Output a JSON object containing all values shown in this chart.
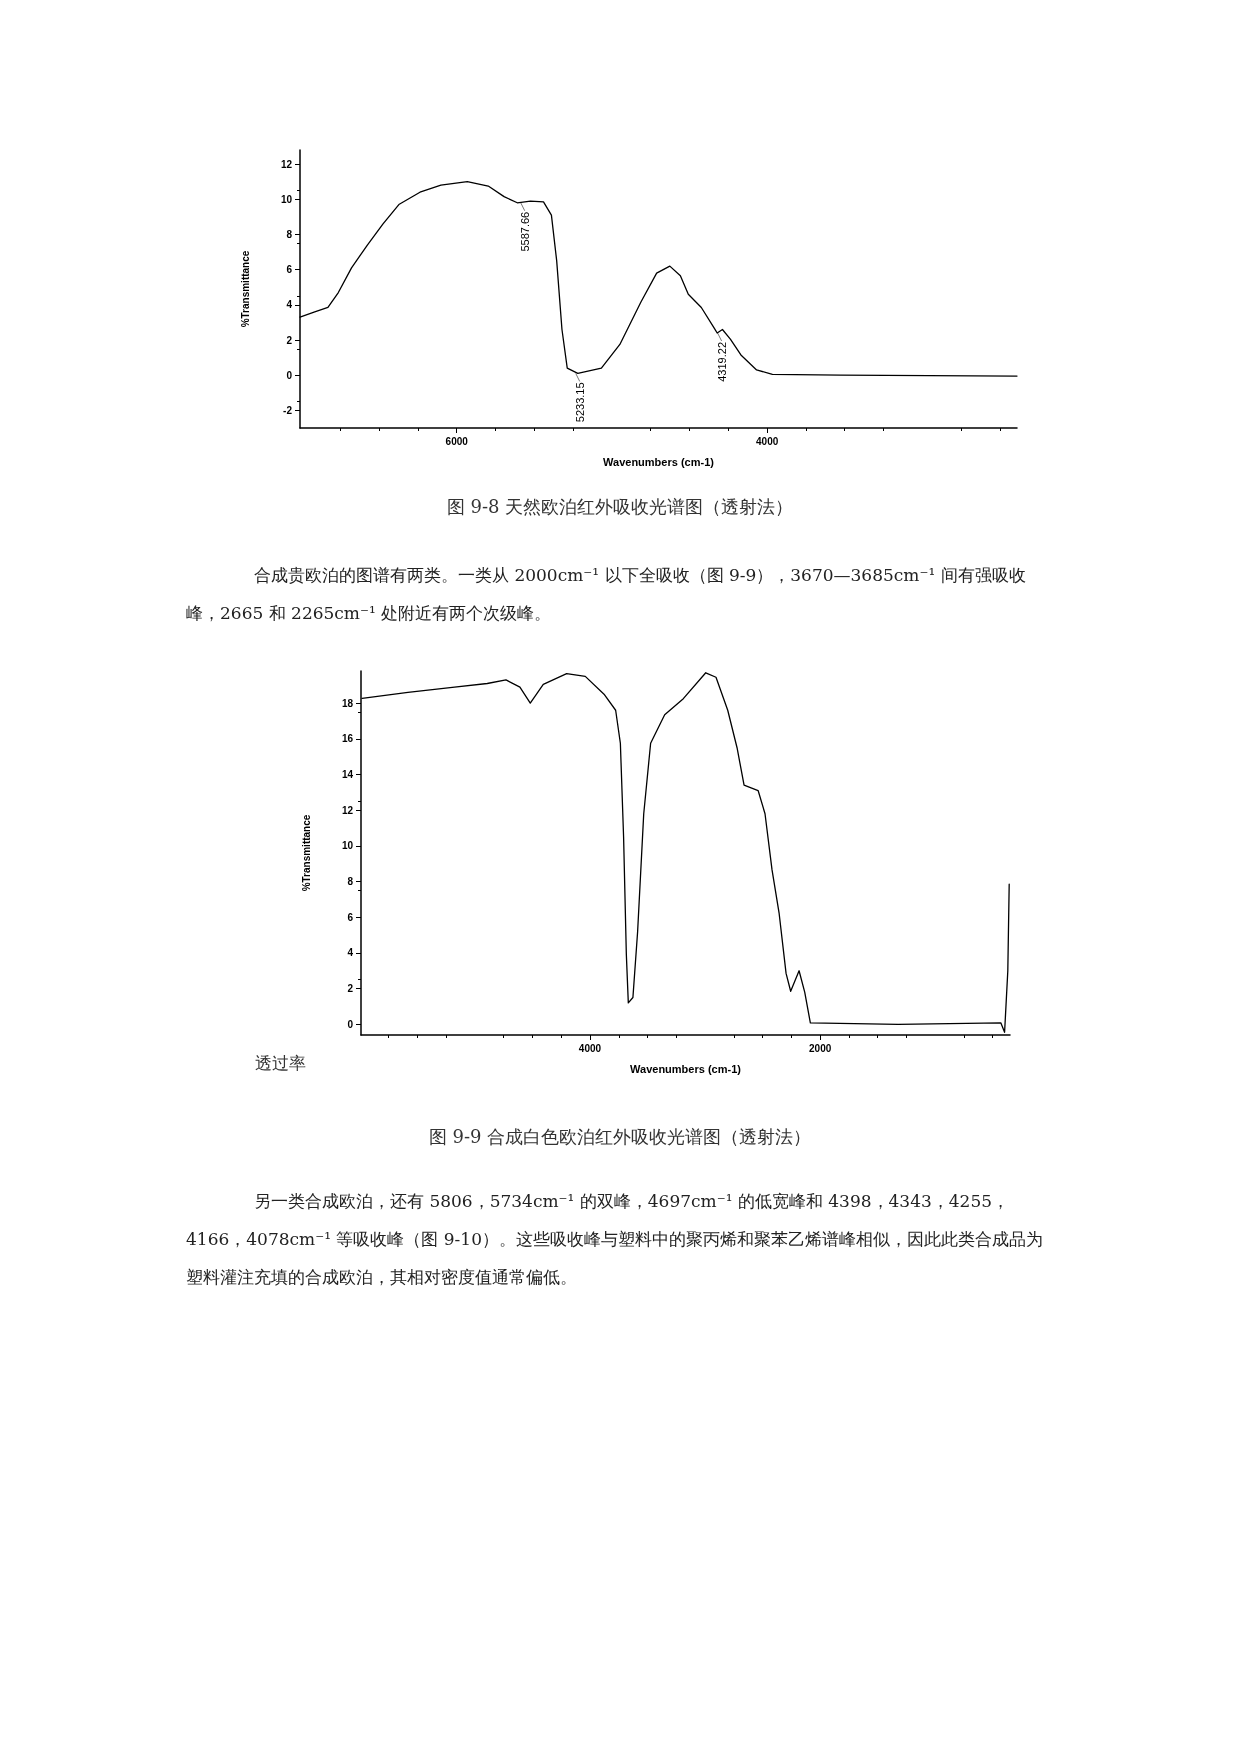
{
  "chart_data": [
    {
      "type": "line",
      "title": "图 9-8 天然欧泊红外吸收光谱图（透射法）",
      "xlabel": "Wavenumbers (cm-1)",
      "ylabel": "%Transmittance",
      "series": [
        {
          "color": "#000000",
          "x": [
            7010,
            6915,
            6830,
            6763,
            6678,
            6576,
            6475,
            6373,
            6237,
            6102,
            5932,
            5797,
            5695,
            5610,
            5525,
            5441,
            5390,
            5356,
            5322,
            5288,
            5220,
            5068,
            4949,
            4814,
            4712,
            4627,
            4559,
            4508,
            4424,
            4339,
            4322,
            4288,
            4237,
            4169,
            4068,
            3966,
            3525,
            2390
          ],
          "values": [
            3.3,
            3.6,
            3.85,
            4.7,
            6.1,
            7.4,
            8.6,
            9.7,
            10.4,
            10.8,
            11.0,
            10.75,
            10.15,
            9.8,
            9.9,
            9.85,
            9.1,
            6.5,
            2.6,
            0.4,
            0.1,
            0.4,
            1.75,
            4.15,
            5.8,
            6.2,
            5.65,
            4.6,
            3.85,
            2.65,
            2.4,
            2.6,
            2.05,
            1.15,
            0.3,
            0.05,
            0,
            -0.05
          ]
        }
      ],
      "xlim": [
        7010,
        2390
      ],
      "xticks": [
        6000,
        4000
      ],
      "ylim": [
        -3,
        12.8
      ],
      "yticks": [
        -2,
        0,
        2,
        4,
        6,
        8,
        10,
        12
      ],
      "marker": "none",
      "line_style": "solid",
      "annotations": [
        {
          "text": "5587.66",
          "x": 5587.66,
          "y": 9.8
        },
        {
          "text": "5233.15",
          "x": 5233.15,
          "y": 0.1
        },
        {
          "text": "4319.22",
          "x": 4319.22,
          "y": 2.4
        },
        "合成贵欧泊的图谱有两类。一类从 2000cm⁻¹ 以下全吸收（图 9-9），3670—3685cm⁻¹ 间有强吸收峰，2665 和 2265cm⁻¹ 处附近有两个次级峰。"
      ]
    },
    {
      "type": "line",
      "title": "图 9-9 合成白色欧泊红外吸收光谱图（透射法）",
      "xlabel": "Wavenumbers (cm-1)",
      "ylabel": "%Transmittance",
      "series": [
        {
          "color": "#000000",
          "x": [
            5980,
            5582,
            5177,
            4893,
            4730,
            4609,
            4519,
            4406,
            4203,
            4041,
            3878,
            3777,
            3736,
            3708,
            3684,
            3667,
            3627,
            3586,
            3533,
            3473,
            3351,
            3189,
            2994,
            2905,
            2803,
            2722,
            2661,
            2600,
            2539,
            2479,
            2418,
            2357,
            2296,
            2256,
            2183,
            2134,
            2085,
            1322,
            430,
            397,
            369,
            357
          ],
          "values": [
            18.27,
            18.6,
            18.9,
            19.1,
            19.3,
            18.9,
            18.0,
            19.05,
            19.65,
            19.5,
            18.5,
            17.6,
            15.75,
            10.5,
            3.9,
            1.2,
            1.5,
            5.2,
            11.8,
            15.75,
            17.35,
            18.25,
            19.7,
            19.45,
            17.6,
            15.5,
            13.4,
            13.25,
            13.1,
            11.8,
            8.65,
            6.25,
            2.85,
            1.85,
            3.0,
            1.8,
            0.08,
            0,
            0.08,
            -0.45,
            3.0,
            7.85
          ]
        }
      ],
      "xlim": [
        5990,
        350
      ],
      "xticks": [
        4000,
        2000
      ],
      "ylim": [
        -0.6,
        19.8
      ],
      "yticks": [
        0,
        2,
        4,
        6,
        8,
        10,
        12,
        14,
        16,
        18
      ],
      "marker": "none",
      "line_style": "solid",
      "annotations": [
        "透过率",
        "另一类合成欧泊，还有 5806，5734cm⁻¹ 的双峰，4697cm⁻¹ 的低宽峰和 4398，4343，4255，4166，4078cm⁻¹ 等吸收峰（图 9-10）。这些吸收峰与塑料中的聚丙烯和聚苯乙烯谱峰相似，因此此类合成品为塑料灌注充填的合成欧泊，其相对密度值通常偏低。"
      ]
    }
  ]
}
